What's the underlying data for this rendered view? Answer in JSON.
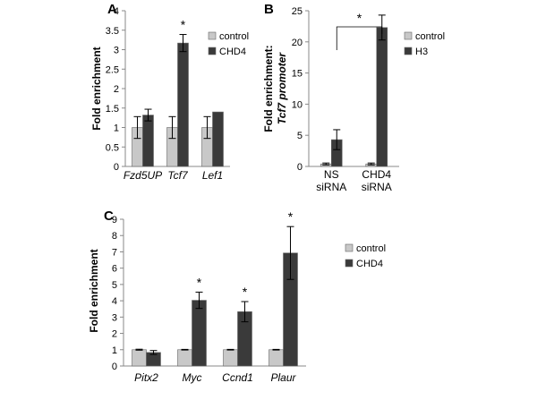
{
  "chart_data": [
    {
      "panel_label": "A",
      "type": "bar",
      "ylabel": "Fold enrichment",
      "ylim": [
        0,
        4
      ],
      "yticks": [
        "0",
        "0.5",
        "1",
        "1.5",
        "2",
        "2.5",
        "3",
        "3.5",
        "4"
      ],
      "categories": [
        "Fzd5UP",
        "Tcf7",
        "Lef1"
      ],
      "series": [
        {
          "name": "control",
          "color": "#c8c8c8",
          "values": [
            1.0,
            1.0,
            1.0
          ],
          "errors": [
            0.28,
            0.28,
            0.28
          ]
        },
        {
          "name": "CHD4",
          "color": "#3a3a3a",
          "values": [
            1.32,
            3.17,
            1.4
          ],
          "errors": [
            0.15,
            0.22,
            0.0
          ]
        }
      ],
      "annotations": [
        {
          "text": "*",
          "category": 1,
          "series": 1
        }
      ],
      "legend": "right"
    },
    {
      "panel_label": "B",
      "type": "bar",
      "ylabel_lines": [
        "Fold enrichment:",
        "Tcf7 promoter"
      ],
      "ylim": [
        0,
        25
      ],
      "yticks": [
        "0",
        "5",
        "10",
        "15",
        "20",
        "25"
      ],
      "categories": [
        [
          "NS",
          "siRNA"
        ],
        [
          "CHD4",
          "siRNA"
        ]
      ],
      "series": [
        {
          "name": "control",
          "color": "#c8c8c8",
          "values": [
            0.4,
            0.4
          ],
          "errors": [
            0.15,
            0.15
          ]
        },
        {
          "name": "H3",
          "color": "#3a3a3a",
          "values": [
            4.3,
            22.3
          ],
          "errors": [
            1.6,
            2.0
          ]
        }
      ],
      "annotations": [
        {
          "text": "*",
          "bracket_between": [
            0,
            1
          ]
        }
      ],
      "legend": "right"
    },
    {
      "panel_label": "C",
      "type": "bar",
      "ylabel": "Fold enrichment",
      "ylim": [
        0,
        9
      ],
      "yticks": [
        "0",
        "1",
        "2",
        "3",
        "4",
        "5",
        "6",
        "7",
        "8",
        "9"
      ],
      "categories": [
        "Pitx2",
        "Myc",
        "Ccnd1",
        "Plaur"
      ],
      "series": [
        {
          "name": "control",
          "color": "#c8c8c8",
          "values": [
            1.0,
            1.0,
            1.0,
            1.0
          ],
          "errors": [
            0.03,
            0.02,
            0.02,
            0.02
          ]
        },
        {
          "name": "CHD4",
          "color": "#3a3a3a",
          "values": [
            0.83,
            4.03,
            3.33,
            6.93
          ],
          "errors": [
            0.12,
            0.5,
            0.62,
            1.62
          ]
        }
      ],
      "annotations": [
        {
          "text": "*",
          "category": 1,
          "series": 1
        },
        {
          "text": "*",
          "category": 2,
          "series": 1
        },
        {
          "text": "*",
          "category": 3,
          "series": 1
        }
      ],
      "legend": "right"
    }
  ]
}
